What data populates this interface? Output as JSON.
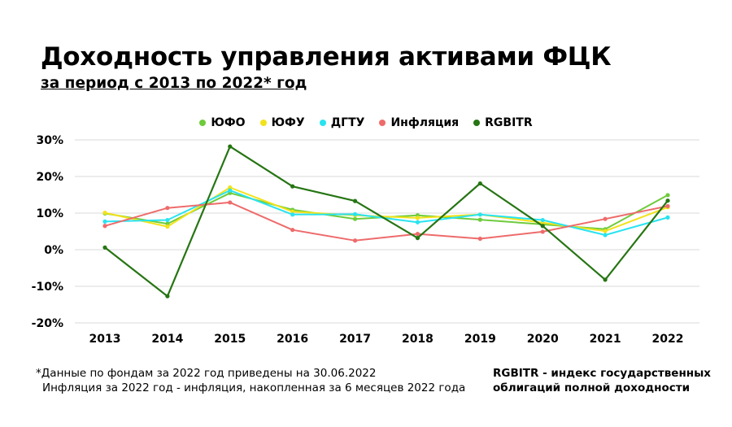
{
  "header": {
    "title": "Доходность управления активами ФЦК",
    "subtitle": "за период с 2013 по 2022* год"
  },
  "chart_data": {
    "type": "line",
    "x": [
      "2013",
      "2014",
      "2015",
      "2016",
      "2017",
      "2018",
      "2019",
      "2020",
      "2021",
      "2022"
    ],
    "ylim": [
      -20,
      30
    ],
    "yticks": [
      "30%",
      "20%",
      "10%",
      "0%",
      "-10%",
      "-20%"
    ],
    "grid": true,
    "legend_position": "top",
    "series": [
      {
        "name": "ЮФО",
        "color": "#6ecb3c",
        "values": [
          9.9,
          7.1,
          15.5,
          10.9,
          8.4,
          9.4,
          8.2,
          6.9,
          5.6,
          14.9
        ]
      },
      {
        "name": "ЮФУ",
        "color": "#f2e21a",
        "values": [
          10.1,
          6.3,
          17.0,
          10.4,
          9.4,
          8.7,
          9.6,
          7.4,
          5.1,
          11.6
        ]
      },
      {
        "name": "ДГТУ",
        "color": "#29e3f0",
        "values": [
          7.7,
          8.1,
          16.2,
          9.6,
          9.7,
          7.5,
          9.6,
          8.1,
          4.0,
          8.8
        ]
      },
      {
        "name": "Инфляция",
        "color": "#ee6b6b",
        "values": [
          6.5,
          11.4,
          12.9,
          5.4,
          2.5,
          4.3,
          3.0,
          4.9,
          8.4,
          11.9
        ]
      },
      {
        "name": "RGBITR",
        "color": "#267513",
        "values": [
          0.6,
          -12.7,
          28.2,
          17.3,
          13.3,
          3.2,
          18.1,
          6.5,
          -8.2,
          13.4
        ]
      }
    ]
  },
  "footnote": {
    "line1": "*Данные по фондам за 2022 год приведены на 30.06.2022",
    "line2": "Инфляция за 2022 год - инфляция, накопленная за 6 месяцев 2022 года"
  },
  "note": {
    "line1": "RGBITR - индекс государственных",
    "line2": "облигаций полной доходности"
  }
}
